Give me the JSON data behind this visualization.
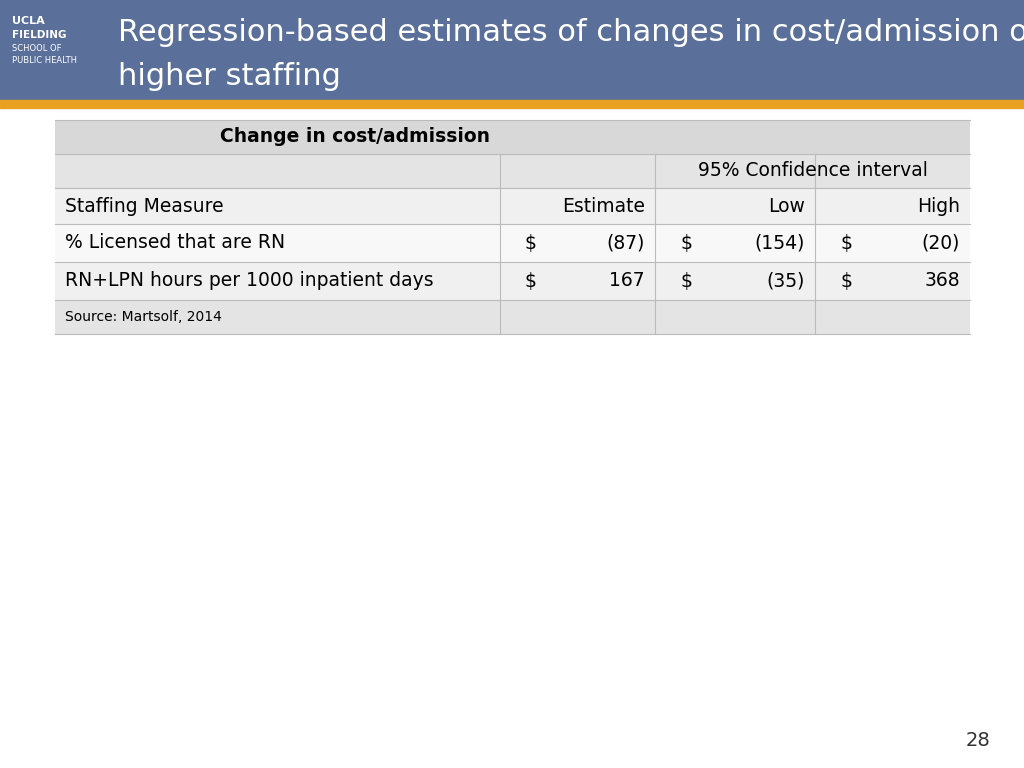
{
  "title_line1": "Regression-based estimates of changes in cost/admission of",
  "title_line2": "higher staffing",
  "header_bg": "#5a6f9a",
  "orange_bar_color": "#e8a020",
  "title_text_color": "#ffffff",
  "table_header_text": "Change in cost/admission",
  "ci_header": "95% Confidence interval",
  "source_text": "Source: Martsolf, 2014",
  "page_number": "28",
  "slide_bg": "#ffffff",
  "row_bg_dark": "#d8d8d8",
  "row_bg_mid": "#e4e4e4",
  "row_bg_light": "#f0f0f0",
  "row_bg_white": "#f8f8f8",
  "line_color": "#bbbbbb",
  "text_color": "#000000"
}
